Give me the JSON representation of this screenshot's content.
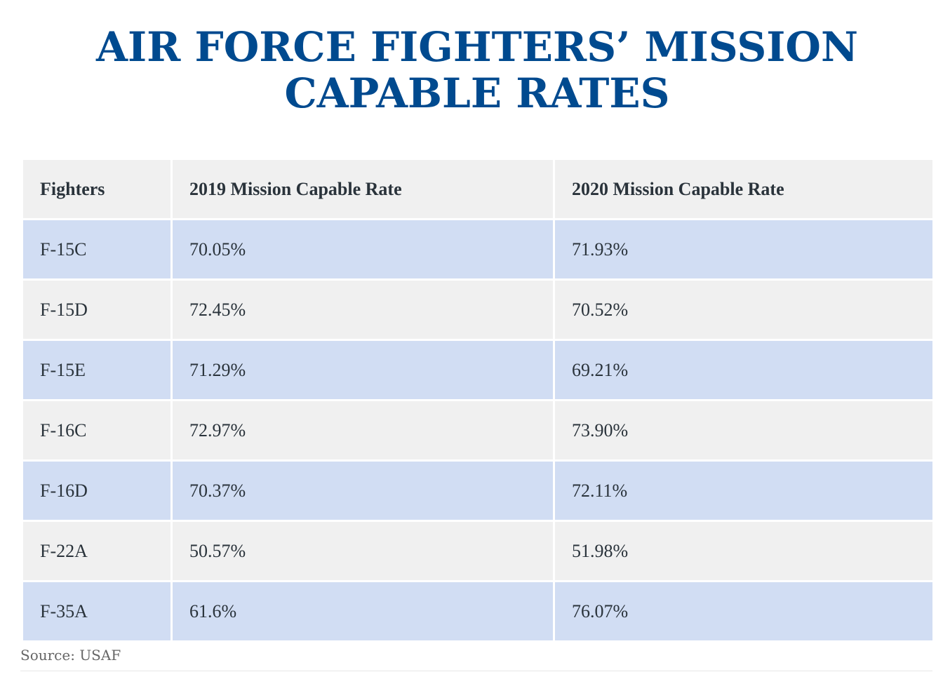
{
  "title": {
    "line1": "AIR FORCE FIGHTERS’ MISSION",
    "line2": "CAPABLE RATES"
  },
  "table": {
    "headers": [
      "Fighters",
      "2019 Mission Capable Rate",
      "2020 Mission Capable Rate"
    ],
    "rows": [
      [
        "F-15C",
        "70.05%",
        "71.93%"
      ],
      [
        "F-15D",
        "72.45%",
        "70.52%"
      ],
      [
        "F-15E",
        "71.29%",
        "69.21%"
      ],
      [
        "F-16C",
        "72.97%",
        "73.90%"
      ],
      [
        "F-16D",
        "70.37%",
        "72.11%"
      ],
      [
        "F-22A",
        "50.57%",
        "51.98%"
      ],
      [
        "F-35A",
        "61.6%",
        "76.07%"
      ]
    ]
  },
  "source": "Source: USAF",
  "colors": {
    "title": "#004a8f",
    "header_bg": "#f0f0f0",
    "row_alt_bg": "#d1ddf3",
    "row_bg": "#f0f0f0",
    "text": "#2a333b"
  }
}
